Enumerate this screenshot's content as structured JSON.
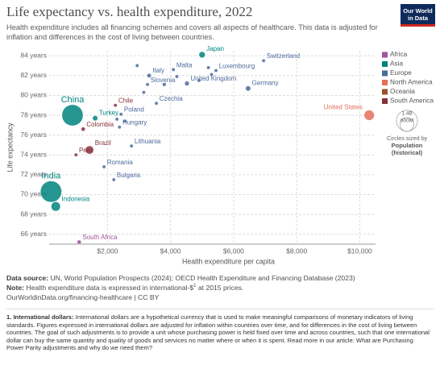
{
  "chart_data": {
    "type": "scatter",
    "title": "Life expectancy vs. health expenditure, 2022",
    "subtitle": "Health expenditure includes all financing schemes and covers all aspects of healthcare. This data is adjusted for inflation and differences in the cost of living between countries.",
    "logo": "Our World in Data",
    "x_label": "Health expenditure per capita",
    "y_label": "Life expectancy",
    "xlim": [
      150,
      10500
    ],
    "ylim": [
      65,
      84.5
    ],
    "xticks": [
      {
        "value": 2000,
        "label": "$2,000"
      },
      {
        "value": 4000,
        "label": "$4,000"
      },
      {
        "value": 6000,
        "label": "$6,000"
      },
      {
        "value": 8000,
        "label": "$8,000"
      },
      {
        "value": 10000,
        "label": "$10,000"
      }
    ],
    "yticks": [
      {
        "value": 66,
        "label": "66 years"
      },
      {
        "value": 68,
        "label": "68 years"
      },
      {
        "value": 70,
        "label": "70 years"
      },
      {
        "value": 72,
        "label": "72 years"
      },
      {
        "value": 74,
        "label": "74 years"
      },
      {
        "value": 76,
        "label": "76 years"
      },
      {
        "value": 78,
        "label": "78 years"
      },
      {
        "value": 80,
        "label": "80 years"
      },
      {
        "value": 82,
        "label": "82 years"
      },
      {
        "value": 84,
        "label": "84 years"
      }
    ],
    "grid": true,
    "size_legend": {
      "title": "Circles sized by",
      "measure": "Population",
      "measure_note": "(historical)",
      "ticks": [
        {
          "value": 1400,
          "label": "1.4B"
        },
        {
          "value": 600,
          "label": "600M"
        }
      ]
    },
    "series": [
      {
        "name": "Africa",
        "color": "#a2559c",
        "labels": [
          "South Africa"
        ],
        "x": [
          1100
        ],
        "values": [
          65.2
        ],
        "sizes": [
          60
        ]
      },
      {
        "name": "Asia",
        "color": "#00847e",
        "labels": [
          "Japan",
          "China",
          "Turkey",
          "India",
          "Indonesia"
        ],
        "x": [
          5000,
          890,
          1610,
          210,
          360
        ],
        "values": [
          84.1,
          78.0,
          77.7,
          70.3,
          68.8
        ],
        "sizes": [
          124,
          1410,
          85,
          1420,
          275
        ]
      },
      {
        "name": "Europe",
        "color": "#4c6a9c",
        "labels": [
          "Switzerland",
          "Malta",
          "Italy",
          "Luxembourg",
          "United Kingdom",
          "Germany",
          "Slovenia",
          "Czechia",
          "Poland",
          "Hungary",
          "Lithuania",
          "Romania",
          "Bulgaria",
          null,
          null,
          null,
          null,
          null,
          null,
          null,
          null,
          null
        ],
        "x": [
          6950,
          4090,
          3320,
          5440,
          4520,
          6460,
          3270,
          3550,
          2430,
          2380,
          2760,
          1890,
          2200,
          2940,
          5200,
          5300,
          4200,
          3800,
          4900,
          2550,
          2300,
          3150
        ],
        "values": [
          83.5,
          82.6,
          82.0,
          82.5,
          81.2,
          80.7,
          81.1,
          79.2,
          78.1,
          76.8,
          74.9,
          72.8,
          71.5,
          83.0,
          82.8,
          82.1,
          81.9,
          81.1,
          81.5,
          77.4,
          77.6,
          80.3
        ],
        "sizes": [
          8.8,
          0.5,
          59,
          0.65,
          68,
          84,
          2.1,
          10.5,
          38,
          9.7,
          2.8,
          19,
          6.6,
          10,
          5,
          11,
          5.5,
          47,
          17,
          10,
          5.4,
          1.3
        ]
      },
      {
        "name": "North America",
        "color": "#e56e5a",
        "labels": [
          "United States"
        ],
        "x": [
          10300
        ],
        "values": [
          78.0
        ],
        "sizes": [
          333
        ]
      },
      {
        "name": "Oceania",
        "color": "#9a5129",
        "labels": [],
        "x": [],
        "values": [],
        "sizes": []
      },
      {
        "name": "South America",
        "color": "#883039",
        "labels": [
          "Chile",
          "Colombia",
          "Brazil",
          "Peru"
        ],
        "x": [
          2250,
          1230,
          1430,
          1000
        ],
        "values": [
          79.0,
          76.6,
          74.5,
          74.0
        ],
        "sizes": [
          19.6,
          52,
          215,
          34
        ]
      }
    ],
    "source_label": "Data source:",
    "source": "UN, World Population Prospects (2024); OECD Health Expenditure and Financing Database (2023)",
    "note_label": "Note:",
    "note_text": "Health expenditure data is expressed in international-$",
    "note_sup": "1",
    "note_tail": "at 2015 prices.",
    "url_line": "OurWorldinData.org/financing-healthcare | CC BY",
    "footnote_label": "1. International dollars:",
    "footnote": "International dollars are a hypothetical currency that is used to make meaningful comparisons of monetary indicators of living standards. Figures expressed in international dollars are adjusted for inflation within countries over time, and for differences in the cost of living between countries. The goal of such adjustments is to provide a unit whose purchasing power is held fixed over time and across countries, such that one international dollar can buy the same quantity and quality of goods and services no matter where or when it is spent. Read more in our article: What are Purchasing Power Parity adjustments and why do we need them?"
  }
}
